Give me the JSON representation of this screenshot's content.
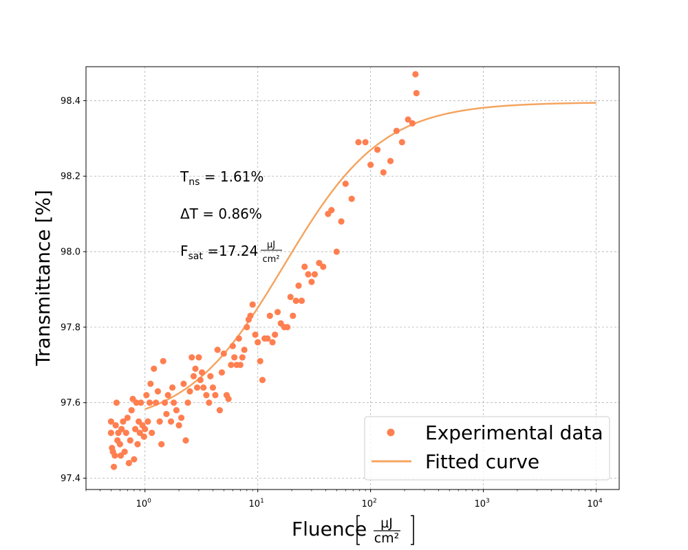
{
  "chart_data": {
    "type": "scatter",
    "xlabel": "Fluence",
    "xlabel_unit": {
      "numerator": "μJ",
      "denominator": "cm²"
    },
    "ylabel": "Transmittance [%]",
    "xscale": "log",
    "xlim": [
      0.3,
      16000
    ],
    "ylim": [
      97.37,
      98.49
    ],
    "x_ticks": [
      {
        "value": 1,
        "base": "10",
        "exp": "0"
      },
      {
        "value": 10,
        "base": "10",
        "exp": "1"
      },
      {
        "value": 100,
        "base": "10",
        "exp": "2"
      },
      {
        "value": 1000,
        "base": "10",
        "exp": "3"
      },
      {
        "value": 10000,
        "base": "10",
        "exp": "4"
      }
    ],
    "y_ticks": [
      97.4,
      97.6,
      97.8,
      98.0,
      98.2,
      98.4
    ],
    "y_tick_labels": [
      "97.4",
      "97.6",
      "97.8",
      "98.0",
      "98.2",
      "98.4"
    ],
    "grid": true,
    "legend_position": "bottom-right",
    "annotations": {
      "tns": {
        "symbol": "T",
        "sub": "ns",
        "text": " = 1.61%"
      },
      "dt": {
        "text": "ΔT = 0.86%"
      },
      "fsat": {
        "symbol": "F",
        "sub": "sat",
        "text": " =17.24",
        "unit_num": "μJ",
        "unit_den": "cm²"
      }
    },
    "series": [
      {
        "name": "Experimental data",
        "kind": "scatter",
        "color": "#FF7F50",
        "points": [
          [
            0.5,
            97.55
          ],
          [
            0.5,
            97.52
          ],
          [
            0.51,
            97.48
          ],
          [
            0.52,
            97.47
          ],
          [
            0.53,
            97.43
          ],
          [
            0.54,
            97.46
          ],
          [
            0.55,
            97.54
          ],
          [
            0.56,
            97.6
          ],
          [
            0.57,
            97.5
          ],
          [
            0.58,
            97.52
          ],
          [
            0.6,
            97.49
          ],
          [
            0.61,
            97.46
          ],
          [
            0.62,
            97.53
          ],
          [
            0.64,
            97.55
          ],
          [
            0.66,
            97.47
          ],
          [
            0.68,
            97.52
          ],
          [
            0.7,
            97.56
          ],
          [
            0.72,
            97.44
          ],
          [
            0.74,
            97.5
          ],
          [
            0.76,
            97.58
          ],
          [
            0.78,
            97.61
          ],
          [
            0.8,
            97.45
          ],
          [
            0.82,
            97.53
          ],
          [
            0.84,
            97.6
          ],
          [
            0.86,
            97.49
          ],
          [
            0.88,
            97.55
          ],
          [
            0.9,
            97.52
          ],
          [
            0.92,
            97.6
          ],
          [
            0.95,
            97.54
          ],
          [
            0.98,
            97.51
          ],
          [
            1.0,
            97.53
          ],
          [
            1.03,
            97.62
          ],
          [
            1.06,
            97.55
          ],
          [
            1.1,
            97.6
          ],
          [
            1.12,
            97.65
          ],
          [
            1.15,
            97.52
          ],
          [
            1.2,
            97.69
          ],
          [
            1.25,
            97.6
          ],
          [
            1.3,
            97.63
          ],
          [
            1.35,
            97.55
          ],
          [
            1.4,
            97.49
          ],
          [
            1.45,
            97.71
          ],
          [
            1.5,
            97.6
          ],
          [
            1.55,
            97.57
          ],
          [
            1.6,
            97.62
          ],
          [
            1.7,
            97.55
          ],
          [
            1.75,
            97.64
          ],
          [
            1.8,
            97.6
          ],
          [
            1.9,
            97.58
          ],
          [
            2.0,
            97.54
          ],
          [
            2.1,
            97.56
          ],
          [
            2.2,
            97.65
          ],
          [
            2.3,
            97.5
          ],
          [
            2.4,
            97.6
          ],
          [
            2.5,
            97.63
          ],
          [
            2.6,
            97.72
          ],
          [
            2.7,
            97.67
          ],
          [
            2.8,
            97.69
          ],
          [
            2.9,
            97.64
          ],
          [
            3.0,
            97.72
          ],
          [
            3.1,
            97.66
          ],
          [
            3.2,
            97.68
          ],
          [
            3.3,
            97.64
          ],
          [
            3.5,
            97.62
          ],
          [
            3.7,
            97.6
          ],
          [
            3.8,
            97.67
          ],
          [
            4.0,
            97.64
          ],
          [
            4.2,
            97.62
          ],
          [
            4.4,
            97.74
          ],
          [
            4.6,
            97.58
          ],
          [
            4.8,
            97.68
          ],
          [
            5.0,
            97.73
          ],
          [
            5.3,
            97.62
          ],
          [
            5.5,
            97.61
          ],
          [
            5.8,
            97.7
          ],
          [
            6.0,
            97.75
          ],
          [
            6.2,
            97.72
          ],
          [
            6.5,
            97.7
          ],
          [
            6.8,
            97.77
          ],
          [
            7.0,
            97.7
          ],
          [
            7.3,
            97.72
          ],
          [
            7.6,
            97.74
          ],
          [
            8.0,
            97.8
          ],
          [
            8.3,
            97.82
          ],
          [
            8.6,
            97.83
          ],
          [
            9.0,
            97.86
          ],
          [
            9.5,
            97.78
          ],
          [
            10.0,
            97.76
          ],
          [
            10.5,
            97.71
          ],
          [
            11.0,
            97.66
          ],
          [
            11.5,
            97.77
          ],
          [
            12.2,
            97.77
          ],
          [
            12.8,
            97.83
          ],
          [
            13.5,
            97.76
          ],
          [
            14.2,
            97.78
          ],
          [
            15.0,
            97.84
          ],
          [
            16.0,
            97.81
          ],
          [
            17.2,
            97.8
          ],
          [
            18.3,
            97.8
          ],
          [
            19.5,
            97.88
          ],
          [
            20.5,
            97.83
          ],
          [
            21.8,
            97.87
          ],
          [
            23.0,
            97.91
          ],
          [
            24.5,
            97.87
          ],
          [
            26.0,
            97.96
          ],
          [
            28.0,
            97.94
          ],
          [
            30.0,
            97.92
          ],
          [
            32.0,
            97.94
          ],
          [
            35.0,
            97.97
          ],
          [
            38.0,
            97.96
          ],
          [
            42.0,
            98.1
          ],
          [
            45.0,
            98.11
          ],
          [
            50.0,
            98.0
          ],
          [
            55.0,
            98.08
          ],
          [
            60.0,
            98.18
          ],
          [
            68.0,
            98.14
          ],
          [
            78.0,
            98.29
          ],
          [
            90.0,
            98.29
          ],
          [
            100.0,
            98.23
          ],
          [
            115.0,
            98.27
          ],
          [
            130.0,
            98.21
          ],
          [
            150.0,
            98.24
          ],
          [
            170.0,
            98.32
          ],
          [
            190.0,
            98.29
          ],
          [
            215.0,
            98.35
          ],
          [
            235.0,
            98.34
          ],
          [
            250.0,
            98.47
          ],
          [
            255.0,
            98.42
          ]
        ]
      },
      {
        "name": "Fitted curve",
        "kind": "line",
        "color": "#F4A460",
        "model": {
          "Tns": 1.61,
          "dT": 0.86,
          "Fsat": 17.24
        },
        "x_range": [
          1,
          10000
        ]
      }
    ]
  }
}
